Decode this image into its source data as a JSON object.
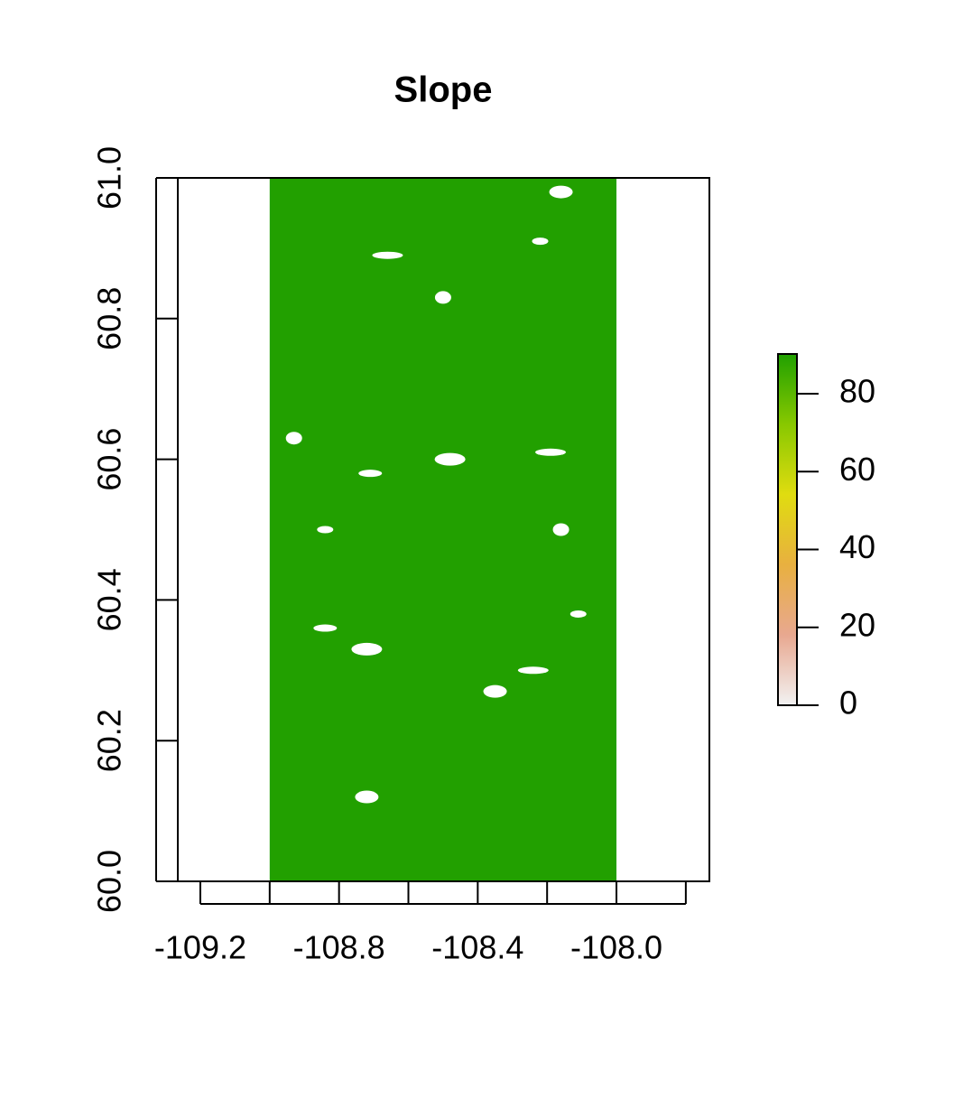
{
  "chart_data": {
    "type": "raster",
    "title": "Slope",
    "xlim": [
      -109.265,
      -107.732
    ],
    "ylim": [
      60.0,
      61.0
    ],
    "xticks": [
      {
        "value": -109.2,
        "label": "-109.2"
      },
      {
        "value": -108.8,
        "label": "-108.8"
      },
      {
        "value": -108.4,
        "label": "-108.4"
      },
      {
        "value": -108.0,
        "label": "-108.0"
      }
    ],
    "xminor_ticks": [
      -109.0,
      -108.6,
      -108.2,
      -107.8
    ],
    "yticks": [
      {
        "value": 60.0,
        "label": "60.0"
      },
      60.2,
      60.4,
      60.6,
      60.8,
      {
        "value": 61.0,
        "label": "61.0"
      }
    ],
    "raster": {
      "xlim": [
        -109.0,
        -108.0
      ],
      "ylim": [
        60.0,
        61.0
      ],
      "value": 85,
      "color": "#22a000"
    },
    "low_slope_points": {
      "color": "#ffffff",
      "x": [
        -108.22,
        -108.16,
        -108.19,
        -108.16,
        -108.84,
        -108.72,
        -108.84,
        -108.35,
        -108.24,
        -108.5,
        -108.71,
        -108.48,
        -108.11,
        -108.72,
        -108.66,
        -108.93
      ],
      "y": [
        60.91,
        60.98,
        60.61,
        60.5,
        60.36,
        60.33,
        60.5,
        60.27,
        60.3,
        60.83,
        60.58,
        60.6,
        60.38,
        60.12,
        60.89,
        60.63
      ],
      "values": [
        0,
        0,
        0,
        0,
        0,
        0,
        0,
        0,
        0,
        0,
        0,
        0,
        0,
        0,
        0,
        0
      ]
    },
    "colorbar": {
      "zlim": [
        0,
        90.2
      ],
      "ticks": [
        0,
        20,
        40,
        60,
        80
      ],
      "colors": [
        "#f2f2f2",
        "#e8a890",
        "#e8b040",
        "#e0dc10",
        "#88c800",
        "#20a000"
      ]
    }
  }
}
